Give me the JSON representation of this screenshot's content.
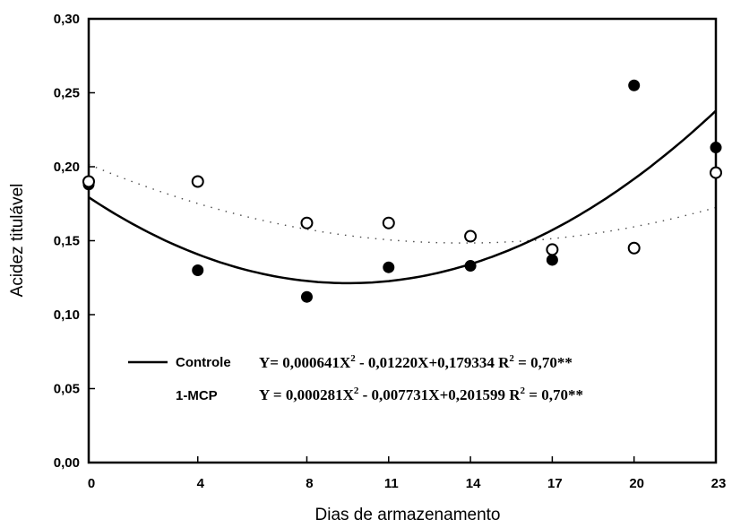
{
  "chart_data": {
    "type": "scatter",
    "xlabel": "Dias de armazenamento",
    "ylabel": "Acidez titulável",
    "xlim": [
      0,
      23
    ],
    "ylim": [
      0.0,
      0.3
    ],
    "x_ticks": [
      0,
      4,
      8,
      11,
      14,
      17,
      20,
      23
    ],
    "x_tick_labels": [
      "0",
      "4",
      "8",
      "11",
      "14",
      "17",
      "20",
      "23"
    ],
    "y_ticks": [
      0.0,
      0.05,
      0.1,
      0.15,
      0.2,
      0.25,
      0.3
    ],
    "y_tick_labels": [
      "0,00",
      "0,05",
      "0,10",
      "0,15",
      "0,20",
      "0,25",
      "0,30"
    ],
    "grid": false,
    "legend_position": "lower-center",
    "series": [
      {
        "name": "Controle",
        "marker": "filled-circle",
        "x": [
          0,
          4,
          8,
          11,
          14,
          17,
          20,
          23
        ],
        "y": [
          0.188,
          0.13,
          0.112,
          0.132,
          0.133,
          0.137,
          0.255,
          0.213
        ],
        "fit": {
          "a": 0.000641,
          "b": -0.0122,
          "c": 0.179334,
          "style": "solid"
        },
        "equation": {
          "lhs": "Y= 0,000641X",
          "exp1": "2",
          "mid": " - 0,01220X+0,179334 R",
          "exp2": "2",
          "tail": " = 0,70**"
        }
      },
      {
        "name": "1-MCP",
        "marker": "open-circle",
        "x": [
          0,
          4,
          8,
          11,
          14,
          17,
          20,
          23
        ],
        "y": [
          0.19,
          0.19,
          0.162,
          0.162,
          0.153,
          0.144,
          0.145,
          0.196
        ],
        "fit": {
          "a": 0.000281,
          "b": -0.007731,
          "c": 0.201599,
          "style": "dotted"
        },
        "equation": {
          "lhs": "Y = 0,000281X",
          "exp1": "2",
          "mid": " - 0,007731X+0,201599 R",
          "exp2": "2",
          "tail": " = 0,70**"
        }
      }
    ]
  }
}
